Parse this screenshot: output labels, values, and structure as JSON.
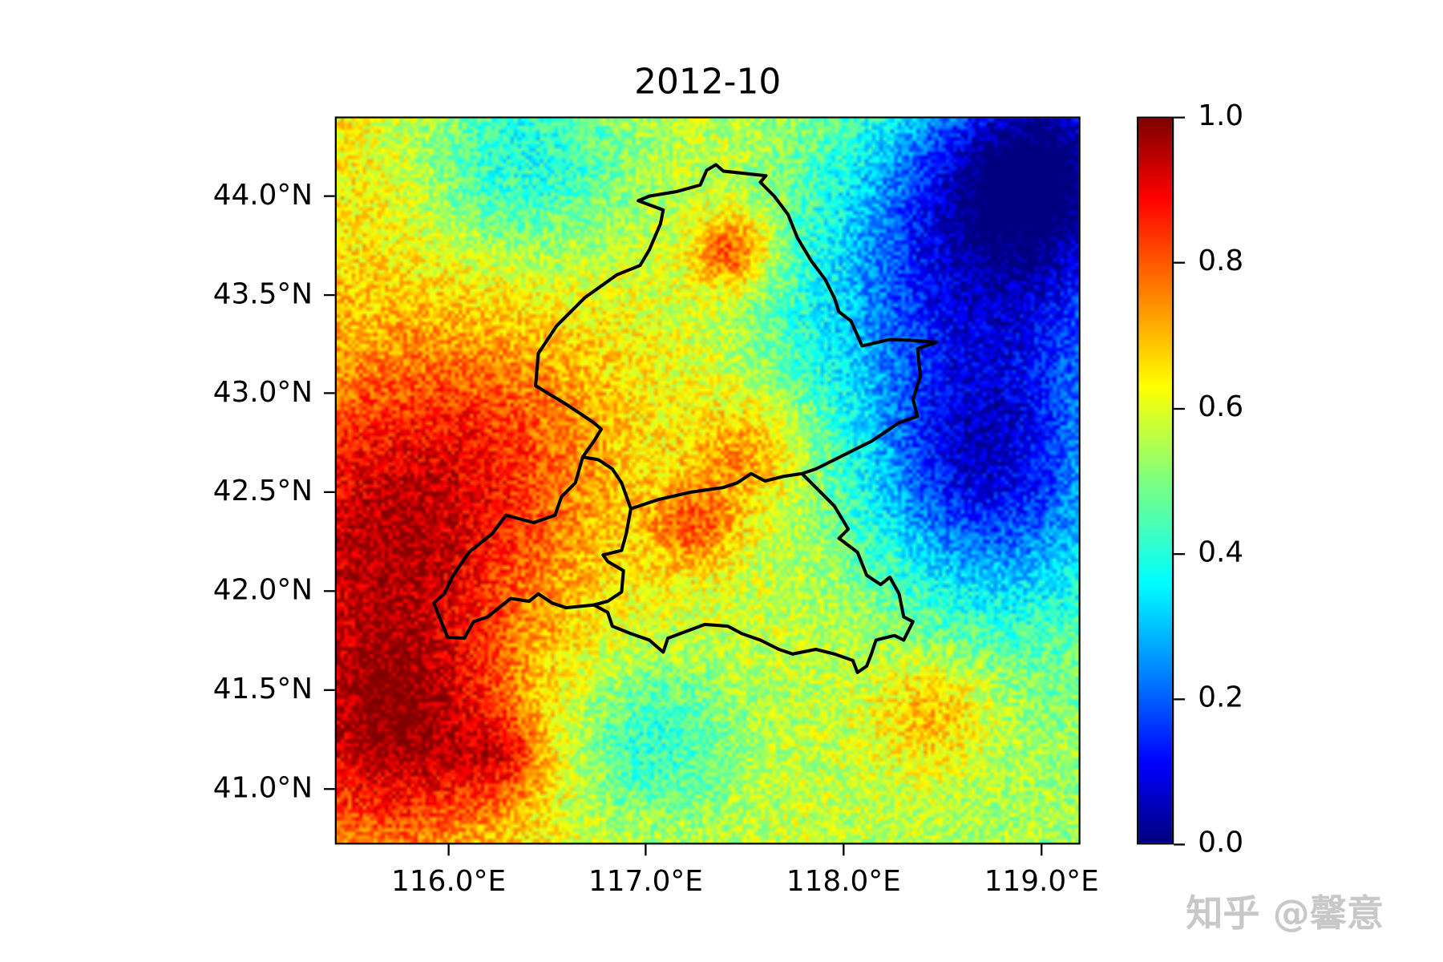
{
  "chart_data": {
    "type": "heatmap",
    "title": "2012-10",
    "xlabel": "",
    "ylabel": "",
    "xlim": [
      115.42,
      119.2
    ],
    "ylim": [
      40.72,
      44.4
    ],
    "x_ticks": [
      "116.0°E",
      "117.0°E",
      "118.0°E",
      "119.0°E"
    ],
    "x_tick_values": [
      116,
      117,
      118,
      119
    ],
    "y_ticks": [
      "44.0°N",
      "43.5°N",
      "43.0°N",
      "42.5°N",
      "42.0°N",
      "41.5°N",
      "41.0°N"
    ],
    "y_tick_values": [
      44.0,
      43.5,
      43.0,
      42.5,
      42.0,
      41.5,
      41.0
    ],
    "colormap": "jet",
    "colorbar": {
      "range": [
        0.0,
        1.0
      ],
      "ticks": [
        "1.0",
        "0.8",
        "0.6",
        "0.4",
        "0.2",
        "0.0"
      ],
      "tick_values": [
        1.0,
        0.8,
        0.6,
        0.4,
        0.2,
        0.0
      ]
    },
    "boundary_color": "#000000",
    "grid": false
  },
  "watermark": "知乎 @馨意"
}
